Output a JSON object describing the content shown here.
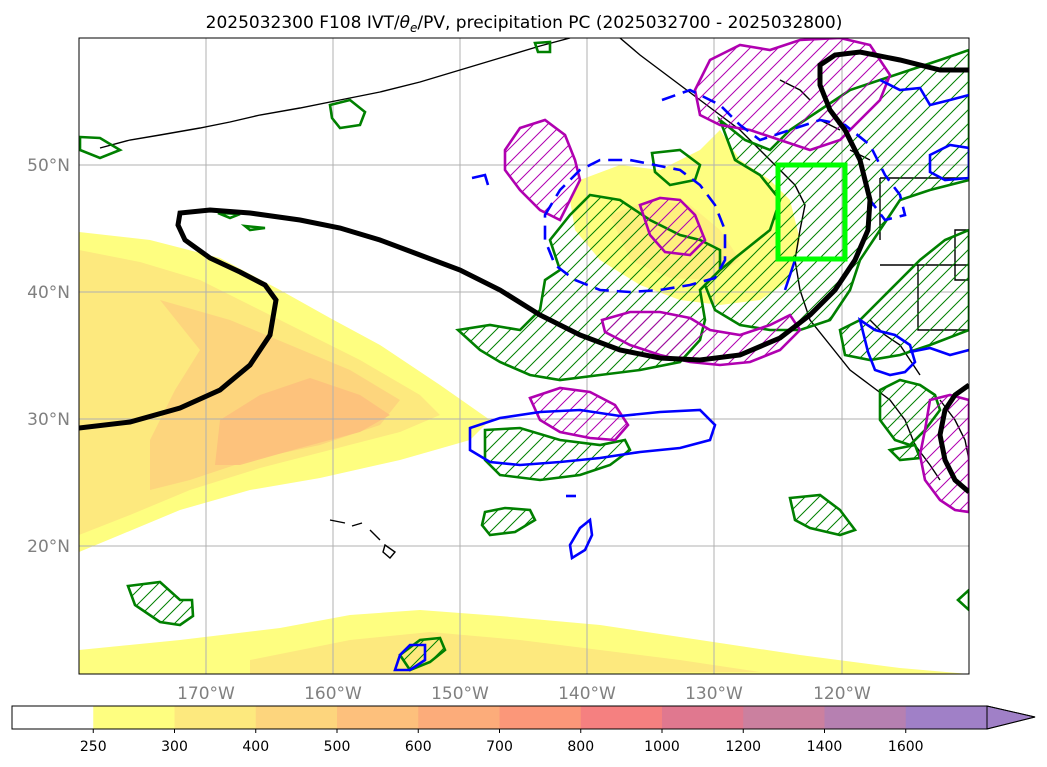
{
  "title": {
    "prefix": "2025032300 F108 IVT/",
    "theta_symbol": "θ",
    "theta_sub": "e",
    "suffix": "/PV, precipitation PC (2025032700 - 2025032800)"
  },
  "map": {
    "projection": "PlateCarree",
    "lon_range": [
      -180,
      -110
    ],
    "lat_range": [
      10,
      60
    ],
    "gridlines": true,
    "lon_labels": [
      "170°W",
      "160°W",
      "150°W",
      "140°W",
      "130°W",
      "120°W"
    ],
    "lat_labels": [
      "50°N",
      "40°N",
      "30°N",
      "20°N"
    ],
    "region_box": {
      "lon": [
        -125,
        -120
      ],
      "lat": [
        42.5,
        50
      ],
      "color": "#00ff00"
    }
  },
  "colorbar": {
    "extend": "max",
    "ticks": [
      "250",
      "300",
      "400",
      "500",
      "600",
      "700",
      "800",
      "1000",
      "1200",
      "1400",
      "1600"
    ],
    "colors": [
      "#ffffff",
      "#fefe80",
      "#fde97e",
      "#fdd57d",
      "#fdc07c",
      "#fcac7a",
      "#fb9779",
      "#f58080",
      "#e0788f",
      "#cb809f",
      "#b680b1",
      "#a080c7"
    ]
  },
  "legend_colors": {
    "pv_contour": "#000000",
    "theta_e_positive": "#0000ff",
    "precip_positive": "#008000",
    "precip_pc": "#b000b0"
  }
}
